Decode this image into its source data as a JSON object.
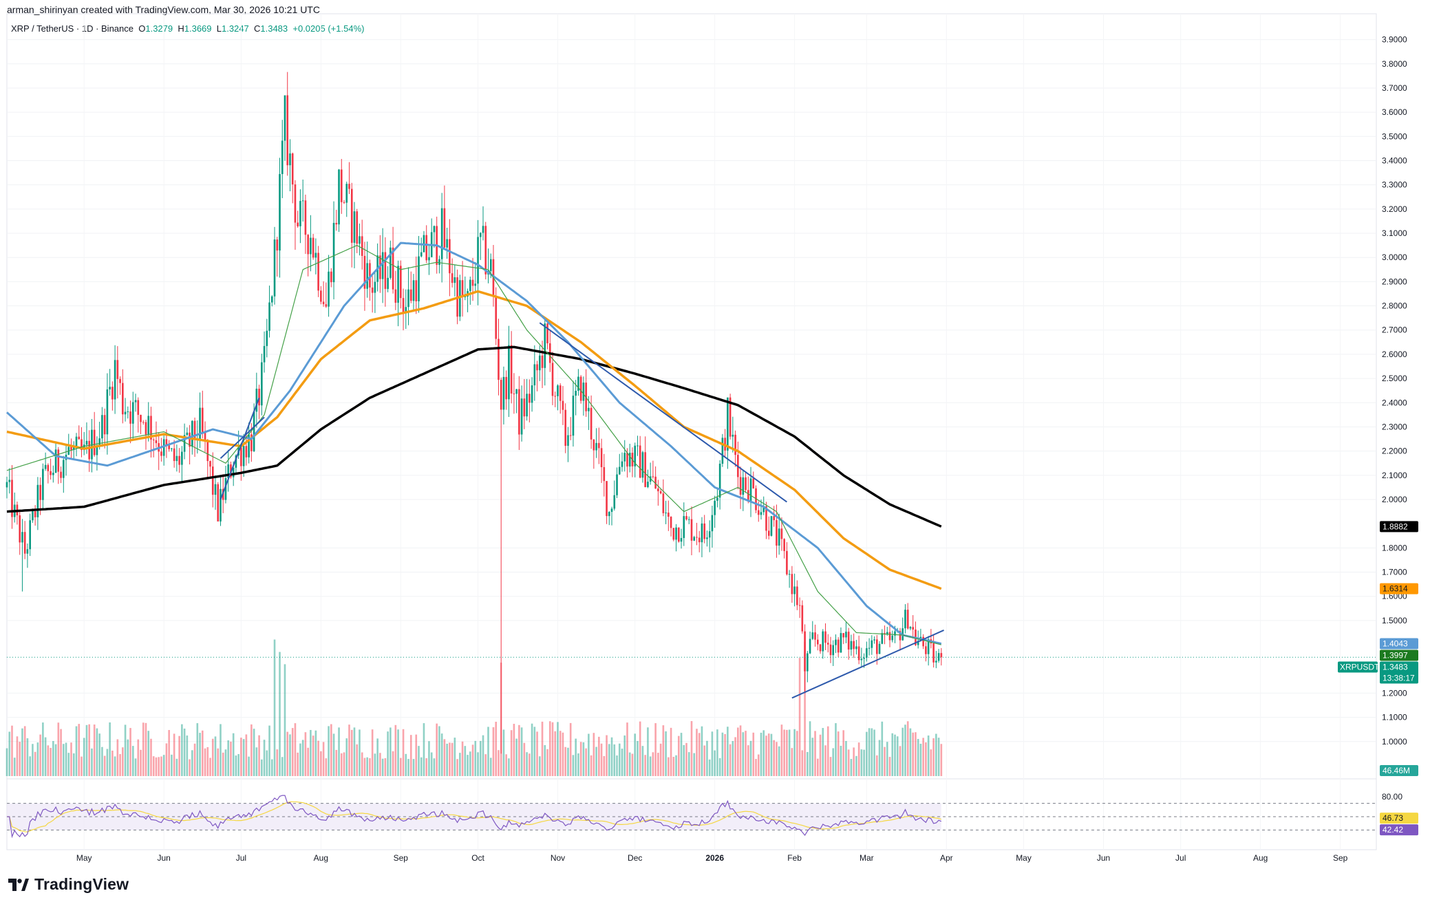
{
  "header": {
    "attribution": "arman_shirinyan created with TradingView.com, Mar 30, 2026 10:21 UTC"
  },
  "legend": {
    "symbol": "XRP / TetherUS · 1D · Binance",
    "open_label": "O",
    "open": "1.3279",
    "high_label": "H",
    "high": "1.3669",
    "low_label": "L",
    "low": "1.3247",
    "close_label": "C",
    "close": "1.3483",
    "change": "+0.0205 (+1.54%)"
  },
  "footer": {
    "brand": "TradingView"
  },
  "colors": {
    "up": "#089981",
    "down": "#f23645",
    "ma20": "#43a047",
    "ma50": "#5b9bd5",
    "ma100": "#f39c12",
    "ma200": "#000000",
    "trend": "#2e5aac",
    "rsi": "#7e57c2",
    "rsi_ma": "#f5d742",
    "rsi_band": "#ede7f6"
  },
  "chart_data": {
    "type": "candlestick",
    "interval": "1D",
    "price_axis": {
      "ticks": [
        "3.9000",
        "3.8000",
        "3.7000",
        "3.6000",
        "3.5000",
        "3.4000",
        "3.3000",
        "3.2000",
        "3.1000",
        "3.0000",
        "2.9000",
        "2.8000",
        "2.7000",
        "2.6000",
        "2.5000",
        "2.4000",
        "2.3000",
        "2.2000",
        "2.1000",
        "2.0000",
        "1.8000",
        "1.7000",
        "1.6000",
        "1.5000",
        "1.2000",
        "1.1000",
        "1.0000"
      ],
      "range": [
        0.88,
        3.95
      ]
    },
    "time_axis": {
      "labels": [
        "May",
        "Jun",
        "Jul",
        "Aug",
        "Sep",
        "Oct",
        "Nov",
        "Dec",
        "2026",
        "Feb",
        "Mar",
        "Apr",
        "May",
        "Jun",
        "Jul",
        "Aug",
        "Sep"
      ],
      "range": [
        "2025-04-01",
        "2026-09-15"
      ]
    },
    "price_anchors": [
      [
        "2025-04-01",
        2.05
      ],
      [
        "2025-04-08",
        1.78
      ],
      [
        "2025-04-15",
        2.08
      ],
      [
        "2025-04-25",
        2.2
      ],
      [
        "2025-05-01",
        2.18
      ],
      [
        "2025-05-08",
        2.3
      ],
      [
        "2025-05-13",
        2.55
      ],
      [
        "2025-05-16",
        2.4
      ],
      [
        "2025-05-25",
        2.33
      ],
      [
        "2025-06-01",
        2.2
      ],
      [
        "2025-06-06",
        2.15
      ],
      [
        "2025-06-15",
        2.3
      ],
      [
        "2025-06-22",
        1.95
      ],
      [
        "2025-06-28",
        2.17
      ],
      [
        "2025-07-05",
        2.26
      ],
      [
        "2025-07-10",
        2.55
      ],
      [
        "2025-07-14",
        3.0
      ],
      [
        "2025-07-18",
        3.55
      ],
      [
        "2025-07-23",
        3.15
      ],
      [
        "2025-07-28",
        3.1
      ],
      [
        "2025-08-03",
        2.8
      ],
      [
        "2025-08-08",
        3.3
      ],
      [
        "2025-08-15",
        3.1
      ],
      [
        "2025-08-20",
        2.88
      ],
      [
        "2025-08-28",
        2.97
      ],
      [
        "2025-09-03",
        2.8
      ],
      [
        "2025-09-10",
        3.0
      ],
      [
        "2025-09-17",
        3.1
      ],
      [
        "2025-09-23",
        2.85
      ],
      [
        "2025-09-27",
        2.8
      ],
      [
        "2025-10-02",
        3.05
      ],
      [
        "2025-10-06",
        2.95
      ],
      [
        "2025-10-10",
        2.4
      ],
      [
        "2025-10-13",
        2.55
      ],
      [
        "2025-10-17",
        2.33
      ],
      [
        "2025-10-22",
        2.45
      ],
      [
        "2025-10-27",
        2.65
      ],
      [
        "2025-11-04",
        2.25
      ],
      [
        "2025-11-10",
        2.48
      ],
      [
        "2025-11-16",
        2.2
      ],
      [
        "2025-11-21",
        1.95
      ],
      [
        "2025-11-26",
        2.2
      ],
      [
        "2025-12-03",
        2.15
      ],
      [
        "2025-12-09",
        2.05
      ],
      [
        "2025-12-15",
        1.88
      ],
      [
        "2025-12-20",
        1.9
      ],
      [
        "2025-12-28",
        1.85
      ],
      [
        "2026-01-02",
        2.05
      ],
      [
        "2026-01-06",
        2.35
      ],
      [
        "2026-01-10",
        2.1
      ],
      [
        "2026-01-15",
        2.05
      ],
      [
        "2026-01-20",
        1.95
      ],
      [
        "2026-01-26",
        1.82
      ],
      [
        "2026-01-31",
        1.65
      ],
      [
        "2026-02-03",
        1.55
      ],
      [
        "2026-02-05",
        1.3
      ],
      [
        "2026-02-08",
        1.42
      ],
      [
        "2026-02-15",
        1.4
      ],
      [
        "2026-02-20",
        1.42
      ],
      [
        "2026-02-27",
        1.37
      ],
      [
        "2026-03-05",
        1.4
      ],
      [
        "2026-03-12",
        1.42
      ],
      [
        "2026-03-17",
        1.52
      ],
      [
        "2026-03-20",
        1.42
      ],
      [
        "2026-03-25",
        1.38
      ],
      [
        "2026-03-28",
        1.33
      ],
      [
        "2026-03-30",
        1.3483
      ]
    ],
    "overlays": {
      "ma20": [
        [
          "2025-04-01",
          2.12
        ],
        [
          "2025-05-01",
          2.22
        ],
        [
          "2025-06-01",
          2.28
        ],
        [
          "2025-06-25",
          2.15
        ],
        [
          "2025-07-10",
          2.35
        ],
        [
          "2025-07-25",
          2.95
        ],
        [
          "2025-08-15",
          3.05
        ],
        [
          "2025-09-01",
          2.95
        ],
        [
          "2025-09-15",
          2.98
        ],
        [
          "2025-10-05",
          2.95
        ],
        [
          "2025-10-20",
          2.7
        ],
        [
          "2025-11-10",
          2.45
        ],
        [
          "2025-12-01",
          2.15
        ],
        [
          "2025-12-20",
          1.95
        ],
        [
          "2026-01-10",
          2.05
        ],
        [
          "2026-01-25",
          1.95
        ],
        [
          "2026-02-10",
          1.62
        ],
        [
          "2026-02-25",
          1.45
        ],
        [
          "2026-03-15",
          1.44
        ],
        [
          "2026-03-30",
          1.3997
        ]
      ],
      "ma50": [
        [
          "2025-04-01",
          2.36
        ],
        [
          "2025-04-20",
          2.18
        ],
        [
          "2025-05-10",
          2.14
        ],
        [
          "2025-06-01",
          2.22
        ],
        [
          "2025-06-20",
          2.29
        ],
        [
          "2025-07-05",
          2.25
        ],
        [
          "2025-07-20",
          2.45
        ],
        [
          "2025-08-10",
          2.8
        ],
        [
          "2025-09-01",
          3.06
        ],
        [
          "2025-09-15",
          3.05
        ],
        [
          "2025-10-01",
          2.97
        ],
        [
          "2025-10-20",
          2.82
        ],
        [
          "2025-11-05",
          2.65
        ],
        [
          "2025-11-25",
          2.4
        ],
        [
          "2025-12-15",
          2.22
        ],
        [
          "2026-01-01",
          2.05
        ],
        [
          "2026-01-20",
          1.97
        ],
        [
          "2026-02-10",
          1.8
        ],
        [
          "2026-03-01",
          1.56
        ],
        [
          "2026-03-15",
          1.44
        ],
        [
          "2026-03-30",
          1.4043
        ]
      ],
      "ma100": [
        [
          "2025-04-01",
          2.28
        ],
        [
          "2025-05-01",
          2.21
        ],
        [
          "2025-06-01",
          2.27
        ],
        [
          "2025-07-01",
          2.22
        ],
        [
          "2025-07-15",
          2.34
        ],
        [
          "2025-08-01",
          2.58
        ],
        [
          "2025-08-20",
          2.74
        ],
        [
          "2025-09-10",
          2.79
        ],
        [
          "2025-10-01",
          2.86
        ],
        [
          "2025-10-20",
          2.8
        ],
        [
          "2025-11-10",
          2.65
        ],
        [
          "2025-12-01",
          2.47
        ],
        [
          "2025-12-20",
          2.3
        ],
        [
          "2026-01-10",
          2.2
        ],
        [
          "2026-02-01",
          2.04
        ],
        [
          "2026-02-20",
          1.84
        ],
        [
          "2026-03-10",
          1.71
        ],
        [
          "2026-03-30",
          1.6314
        ]
      ],
      "ma200": [
        [
          "2025-04-01",
          1.95
        ],
        [
          "2025-05-01",
          1.97
        ],
        [
          "2025-06-01",
          2.06
        ],
        [
          "2025-07-01",
          2.11
        ],
        [
          "2025-07-15",
          2.14
        ],
        [
          "2025-08-01",
          2.29
        ],
        [
          "2025-08-20",
          2.42
        ],
        [
          "2025-09-10",
          2.52
        ],
        [
          "2025-10-01",
          2.62
        ],
        [
          "2025-10-15",
          2.63
        ],
        [
          "2025-11-10",
          2.58
        ],
        [
          "2025-12-01",
          2.52
        ],
        [
          "2025-12-20",
          2.46
        ],
        [
          "2026-01-10",
          2.39
        ],
        [
          "2026-02-01",
          2.26
        ],
        [
          "2026-02-20",
          2.1
        ],
        [
          "2026-03-10",
          1.98
        ],
        [
          "2026-03-30",
          1.8882
        ]
      ]
    },
    "trendlines": [
      [
        [
          "2025-06-23",
          2.0
        ],
        [
          "2025-07-08",
          2.42
        ]
      ],
      [
        [
          "2025-06-23",
          2.17
        ],
        [
          "2025-07-10",
          2.34
        ]
      ],
      [
        [
          "2025-10-25",
          2.73
        ],
        [
          "2026-01-29",
          1.99
        ]
      ],
      [
        [
          "2026-01-31",
          1.18
        ],
        [
          "2026-03-31",
          1.46
        ]
      ]
    ],
    "price_badges": [
      {
        "label": "1.8882",
        "value": 1.8882,
        "bg": "#000000",
        "fg": "#ffffff"
      },
      {
        "label": "1.6314",
        "value": 1.6314,
        "bg": "#ff9800",
        "fg": "#131722"
      },
      {
        "label": "1.4043",
        "value": 1.4043,
        "bg": "#5b9bd5",
        "fg": "#ffffff"
      },
      {
        "label": "1.3997",
        "value": 1.3997,
        "bg": "#1b7a1f",
        "fg": "#ffffff"
      },
      {
        "label": "1.3483",
        "value": 1.3483,
        "bg": "#089981",
        "fg": "#ffffff",
        "sub": "13:38:17",
        "tag": "XRPUSDT"
      }
    ],
    "volume_label": "46.46M",
    "rsi": {
      "levels": {
        "upper": 70,
        "mid": 50,
        "lower": 30
      },
      "axis_label": "80.00",
      "value_ma": "46.73",
      "value": "42.42"
    }
  }
}
